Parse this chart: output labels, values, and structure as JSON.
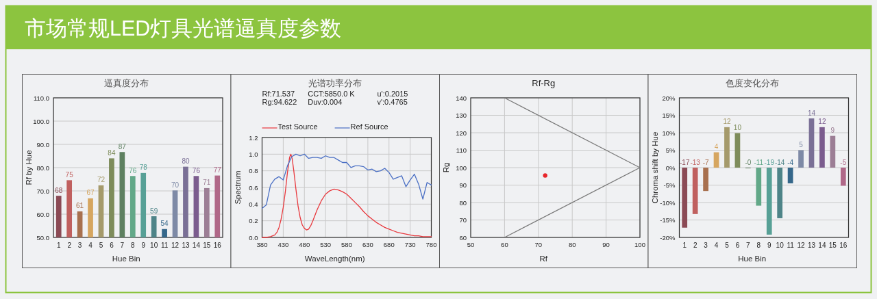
{
  "chart_data": [
    {
      "type": "other",
      "title": "市场常规LED灯具光谱逼真度参数"
    },
    {
      "type": "bar",
      "title": "逼真度分布",
      "xlabel": "Hue Bin",
      "ylabel": "Rf by Hue",
      "categories": [
        "1",
        "2",
        "3",
        "4",
        "5",
        "6",
        "7",
        "8",
        "9",
        "10",
        "11",
        "12",
        "13",
        "14",
        "15",
        "16"
      ],
      "values": [
        67.9,
        74.6,
        61.2,
        66.8,
        72.4,
        84.0,
        86.7,
        76.4,
        77.7,
        59.1,
        53.6,
        70.2,
        80.4,
        76.4,
        71.2,
        76.6
      ],
      "colors": [
        "#8b4a55",
        "#c0605f",
        "#a8704e",
        "#d6a660",
        "#a59a6b",
        "#7e8c5b",
        "#5e8060",
        "#62a888",
        "#57a096",
        "#4e8488",
        "#35678a",
        "#7e8aa6",
        "#7a7096",
        "#7b5c8e",
        "#9c7e95",
        "#b06888"
      ],
      "value_labels": [
        "68",
        "75",
        "61",
        "67",
        "72",
        "84",
        "87",
        "76",
        "78",
        "59",
        "54",
        "70",
        "80",
        "76",
        "71",
        "77"
      ],
      "ylim": [
        50,
        110
      ],
      "yticks": [
        {
          "value": 50,
          "label": "50.0"
        },
        {
          "value": 60,
          "label": "60.0"
        },
        {
          "value": 70,
          "label": "70.0"
        },
        {
          "value": 80,
          "label": "80.0"
        },
        {
          "value": 90,
          "label": "90.0"
        },
        {
          "value": 100,
          "label": "100.0"
        },
        {
          "value": 110,
          "label": "110.0"
        }
      ],
      "grid": "y"
    },
    {
      "type": "line",
      "title": "光谱功率分布",
      "xlabel": "WaveLength(nm)",
      "ylabel": "Spectrum",
      "annotations": [
        "Rf:71.537",
        "CCT:5850.0 K",
        "u':0.2015",
        "Rg:94.622",
        "Duv:0.004",
        "v':0.4765"
      ],
      "legend": "top",
      "series": [
        {
          "name": "Test Source",
          "color": "#e8383d",
          "x": [
            380,
            390,
            400,
            410,
            415,
            420,
            425,
            430,
            435,
            440,
            445,
            448,
            451,
            455,
            460,
            465,
            470,
            475,
            480,
            485,
            490,
            495,
            500,
            510,
            520,
            530,
            540,
            550,
            560,
            570,
            580,
            590,
            600,
            610,
            620,
            630,
            640,
            650,
            660,
            670,
            680,
            690,
            700,
            710,
            720,
            730,
            740,
            750,
            760,
            770,
            780
          ],
          "values": [
            0,
            0,
            0.01,
            0.03,
            0.06,
            0.12,
            0.22,
            0.36,
            0.55,
            0.78,
            0.96,
            1.0,
            0.95,
            0.8,
            0.58,
            0.38,
            0.24,
            0.15,
            0.11,
            0.09,
            0.1,
            0.14,
            0.2,
            0.33,
            0.44,
            0.52,
            0.56,
            0.58,
            0.57,
            0.55,
            0.52,
            0.47,
            0.42,
            0.37,
            0.31,
            0.26,
            0.22,
            0.18,
            0.15,
            0.12,
            0.1,
            0.08,
            0.06,
            0.05,
            0.04,
            0.03,
            0.02,
            0.02,
            0.01,
            0.01,
            0.01
          ]
        },
        {
          "name": "Ref Source",
          "color": "#4a6fc4",
          "x": [
            380,
            390,
            400,
            410,
            420,
            430,
            440,
            450,
            460,
            470,
            480,
            490,
            500,
            510,
            520,
            530,
            540,
            550,
            560,
            570,
            580,
            590,
            600,
            610,
            620,
            630,
            640,
            650,
            660,
            670,
            680,
            690,
            700,
            710,
            720,
            730,
            740,
            750,
            760,
            770,
            780
          ],
          "values": [
            0.35,
            0.39,
            0.63,
            0.7,
            0.73,
            0.69,
            0.86,
            0.97,
            1.0,
            0.98,
            1.0,
            0.95,
            0.96,
            0.96,
            0.95,
            0.98,
            0.96,
            0.96,
            0.93,
            0.9,
            0.9,
            0.84,
            0.86,
            0.86,
            0.85,
            0.81,
            0.82,
            0.79,
            0.8,
            0.83,
            0.78,
            0.7,
            0.72,
            0.74,
            0.61,
            0.69,
            0.76,
            0.64,
            0.46,
            0.66,
            0.63
          ]
        }
      ],
      "xlim": [
        380,
        780
      ],
      "xticks": [
        380,
        430,
        480,
        530,
        580,
        630,
        680,
        730,
        780
      ],
      "ylim": [
        0,
        1.2
      ],
      "yticks": [
        {
          "value": 0,
          "label": "0.0"
        },
        {
          "value": 0.2,
          "label": "0.2"
        },
        {
          "value": 0.4,
          "label": "0.4"
        },
        {
          "value": 0.6,
          "label": "0.6"
        },
        {
          "value": 0.8,
          "label": "0.8"
        },
        {
          "value": 1,
          "label": "1.0"
        },
        {
          "value": 1.2,
          "label": "1.2"
        }
      ],
      "grid": true
    },
    {
      "type": "scatter",
      "title": "Rf-Rg",
      "xlabel": "Rf",
      "ylabel": "Rg",
      "series": [
        {
          "type": "line",
          "color": "#7a7a7a",
          "x": [
            60,
            100,
            60
          ],
          "values": [
            140,
            100,
            60
          ]
        },
        {
          "type": "scatter",
          "color": "#e8262b",
          "marker": "circle",
          "x": [
            72
          ],
          "values": [
            95.5
          ]
        }
      ],
      "xlim": [
        50,
        100
      ],
      "xticks": [
        50,
        60,
        70,
        80,
        90,
        100
      ],
      "ylim": [
        60,
        140
      ],
      "yticks": [
        60,
        70,
        80,
        90,
        100,
        110,
        120,
        130,
        140
      ],
      "grid": true
    },
    {
      "type": "bar",
      "title": "色度变化分布",
      "xlabel": "Hue Bin",
      "ylabel": "Chroma shift by Hue",
      "categories": [
        "1",
        "2",
        "3",
        "4",
        "5",
        "6",
        "7",
        "8",
        "9",
        "10",
        "11",
        "12",
        "13",
        "14",
        "15",
        "16"
      ],
      "values": [
        -17.2,
        -13.3,
        -6.7,
        4.4,
        11.6,
        9.9,
        -0.2,
        -10.9,
        -19.2,
        -14.5,
        -4.5,
        5.0,
        14.1,
        11.6,
        9.1,
        -5.2
      ],
      "colors": [
        "#8b4a55",
        "#c0605f",
        "#a8704e",
        "#d6a660",
        "#a59a6b",
        "#7e8c5b",
        "#5e8060",
        "#62a888",
        "#57a096",
        "#4e8488",
        "#35678a",
        "#7e8aa6",
        "#7a7096",
        "#7b5c8e",
        "#9c7e95",
        "#b06888"
      ],
      "value_labels": [
        "-17",
        "-13",
        "-7",
        "4",
        "12",
        "10",
        "-0",
        "-11",
        "-19",
        "-14",
        "-4",
        "5",
        "14",
        "12",
        "9",
        "-5"
      ],
      "ylim": [
        -20,
        20
      ],
      "yticks": [
        {
          "value": -20,
          "label": "-20%"
        },
        {
          "value": -15,
          "label": "-15%"
        },
        {
          "value": -10,
          "label": "-10%"
        },
        {
          "value": -5,
          "label": "-5%"
        },
        {
          "value": 0,
          "label": "0%"
        },
        {
          "value": 5,
          "label": "5%"
        },
        {
          "value": 10,
          "label": "10%"
        },
        {
          "value": 15,
          "label": "15%"
        },
        {
          "value": 20,
          "label": "20%"
        }
      ],
      "grid": "y"
    }
  ]
}
